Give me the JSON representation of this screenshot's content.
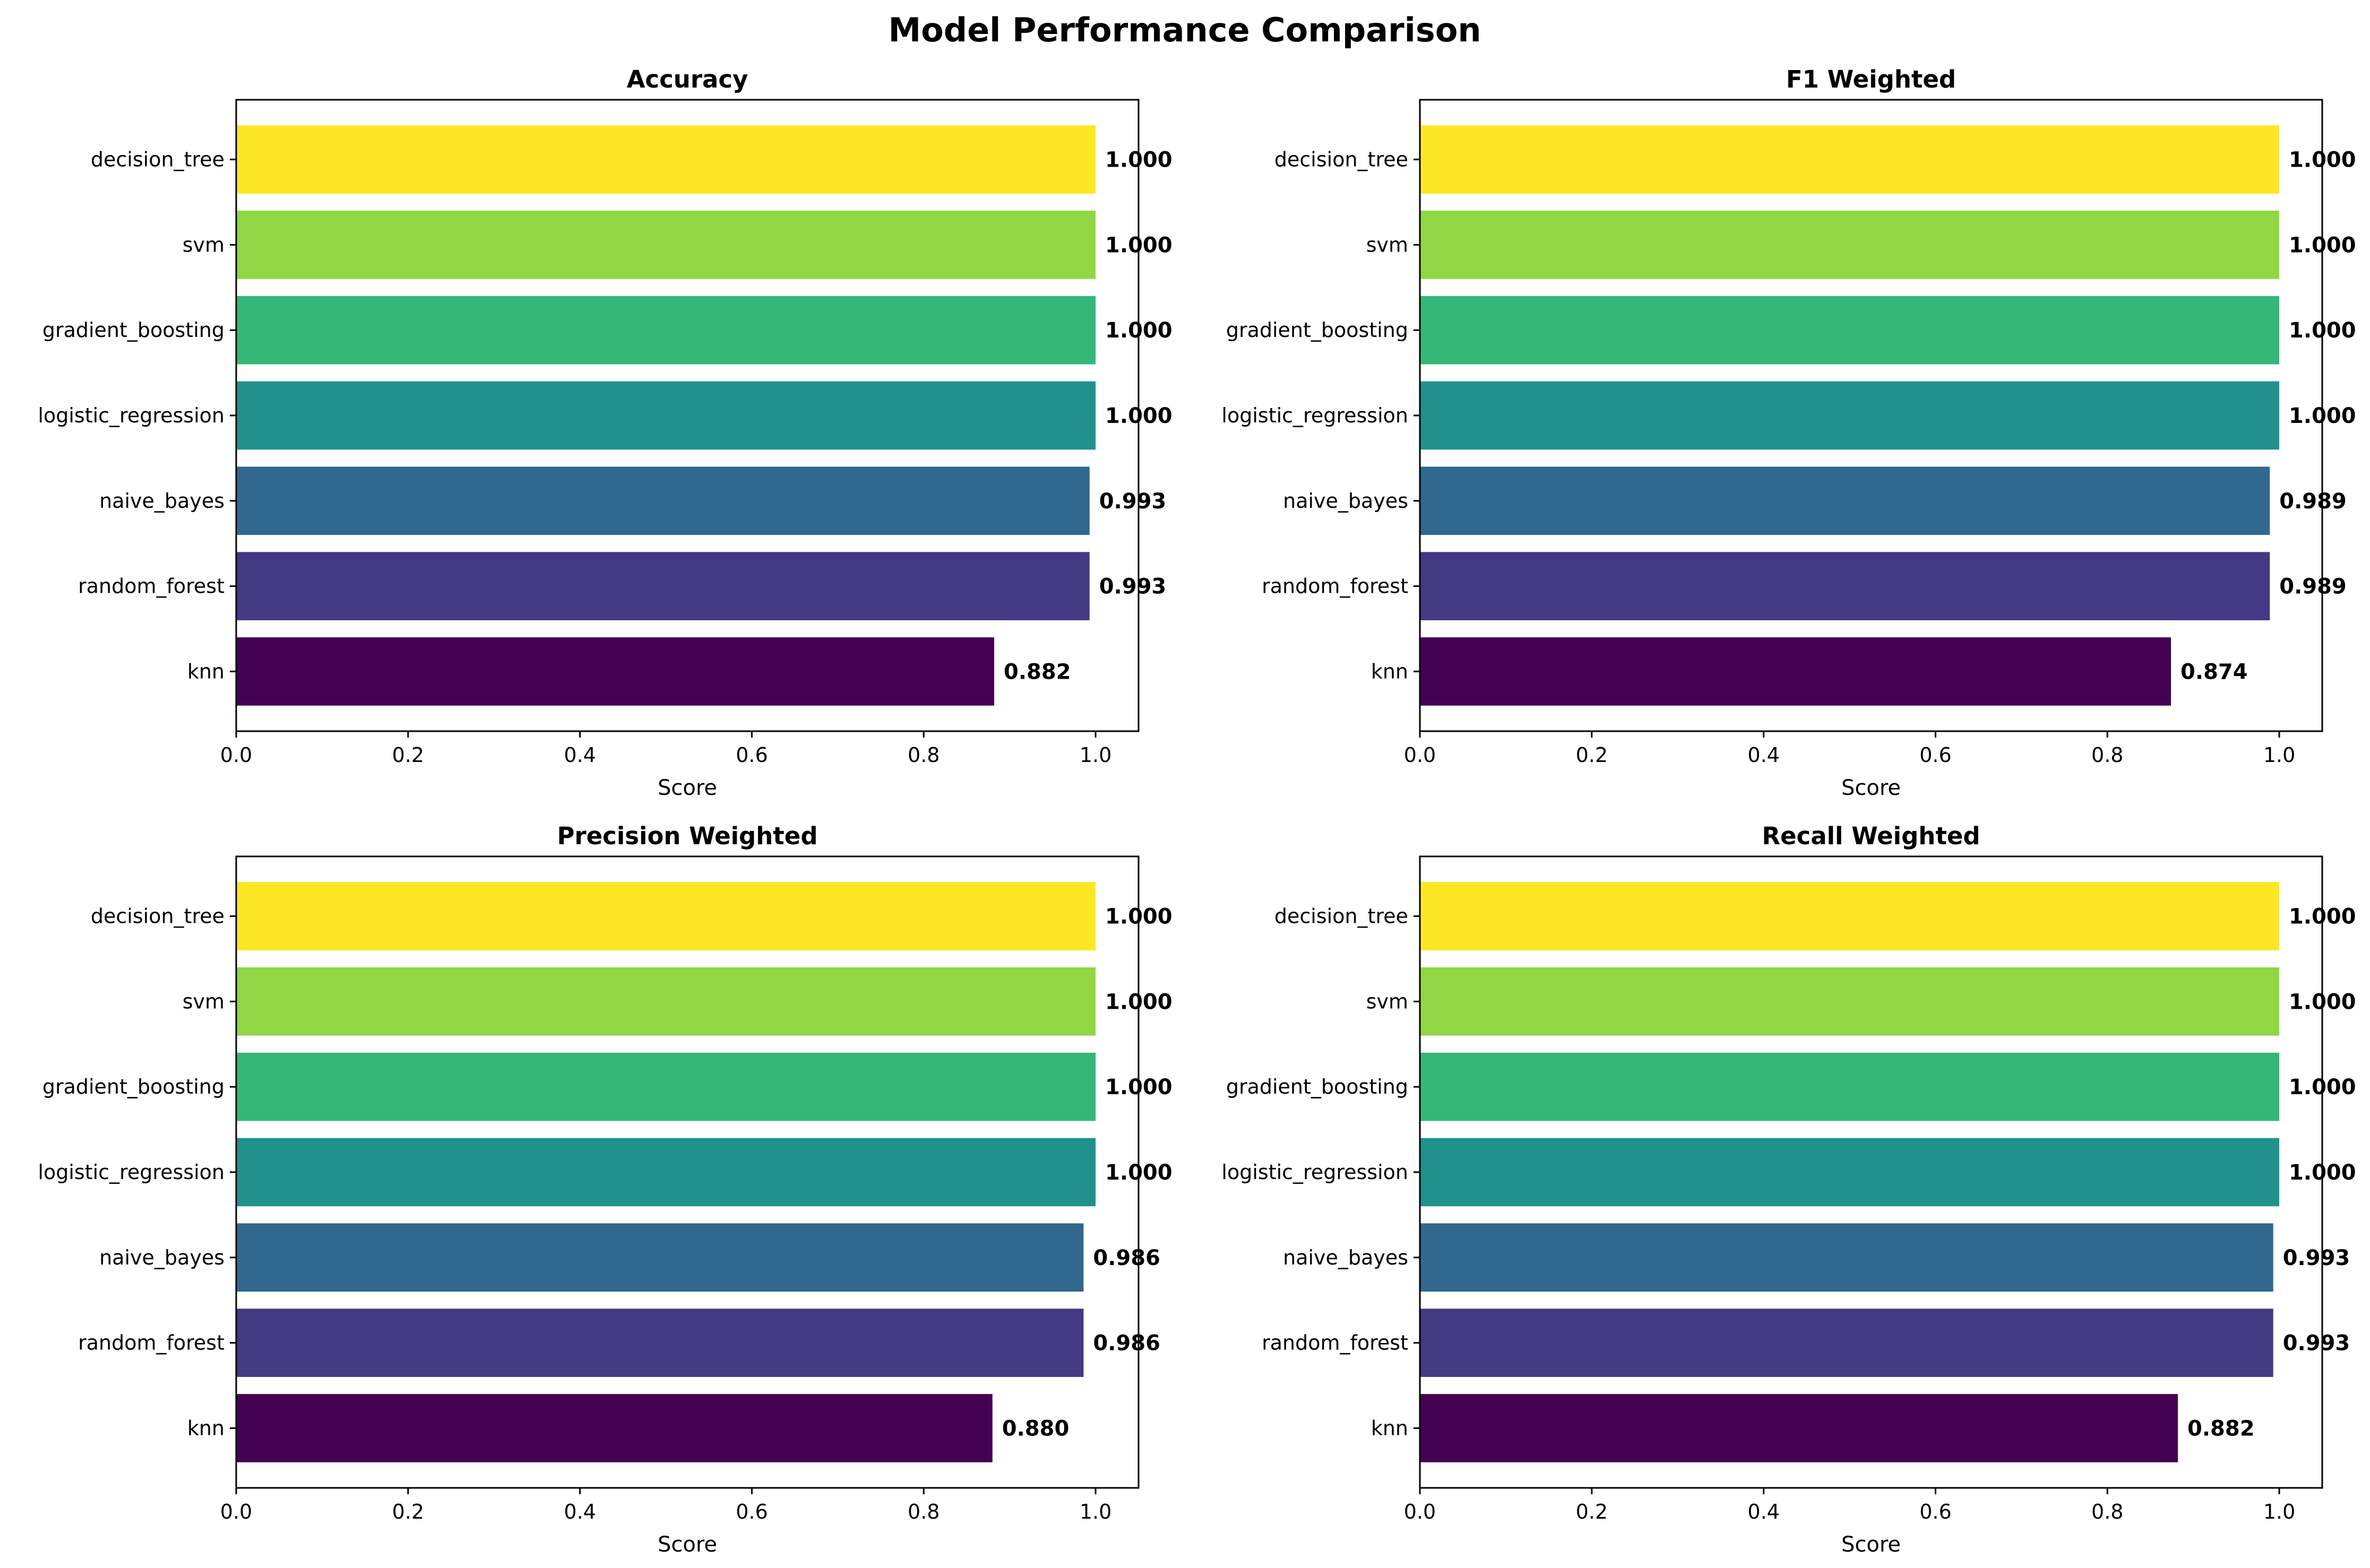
{
  "title": "Model Performance Comparison",
  "chart_data": [
    {
      "type": "bar",
      "orientation": "horizontal",
      "title": "Accuracy",
      "xlabel": "Score",
      "ylabel": "",
      "xlim": [
        0,
        1.05
      ],
      "xticks": [
        "0.0",
        "0.2",
        "0.4",
        "0.6",
        "0.8",
        "1.0"
      ],
      "categories": [
        "knn",
        "random_forest",
        "naive_bayes",
        "logistic_regression",
        "gradient_boosting",
        "svm",
        "decision_tree"
      ],
      "values": [
        0.882,
        0.993,
        0.993,
        1.0,
        1.0,
        1.0,
        1.0
      ],
      "value_labels": [
        "0.882",
        "0.993",
        "0.993",
        "1.000",
        "1.000",
        "1.000",
        "1.000"
      ],
      "colors": [
        "#440154",
        "#443983",
        "#31688e",
        "#21918c",
        "#35b779",
        "#90d743",
        "#fde725"
      ],
      "grid": false,
      "legend": "none"
    },
    {
      "type": "bar",
      "orientation": "horizontal",
      "title": "F1 Weighted",
      "xlabel": "Score",
      "ylabel": "",
      "xlim": [
        0,
        1.05
      ],
      "xticks": [
        "0.0",
        "0.2",
        "0.4",
        "0.6",
        "0.8",
        "1.0"
      ],
      "categories": [
        "knn",
        "random_forest",
        "naive_bayes",
        "logistic_regression",
        "gradient_boosting",
        "svm",
        "decision_tree"
      ],
      "values": [
        0.874,
        0.989,
        0.989,
        1.0,
        1.0,
        1.0,
        1.0
      ],
      "value_labels": [
        "0.874",
        "0.989",
        "0.989",
        "1.000",
        "1.000",
        "1.000",
        "1.000"
      ],
      "colors": [
        "#440154",
        "#443983",
        "#31688e",
        "#21918c",
        "#35b779",
        "#90d743",
        "#fde725"
      ],
      "grid": false,
      "legend": "none"
    },
    {
      "type": "bar",
      "orientation": "horizontal",
      "title": "Precision Weighted",
      "xlabel": "Score",
      "ylabel": "",
      "xlim": [
        0,
        1.05
      ],
      "xticks": [
        "0.0",
        "0.2",
        "0.4",
        "0.6",
        "0.8",
        "1.0"
      ],
      "categories": [
        "knn",
        "random_forest",
        "naive_bayes",
        "logistic_regression",
        "gradient_boosting",
        "svm",
        "decision_tree"
      ],
      "values": [
        0.88,
        0.986,
        0.986,
        1.0,
        1.0,
        1.0,
        1.0
      ],
      "value_labels": [
        "0.880",
        "0.986",
        "0.986",
        "1.000",
        "1.000",
        "1.000",
        "1.000"
      ],
      "colors": [
        "#440154",
        "#443983",
        "#31688e",
        "#21918c",
        "#35b779",
        "#90d743",
        "#fde725"
      ],
      "grid": false,
      "legend": "none"
    },
    {
      "type": "bar",
      "orientation": "horizontal",
      "title": "Recall Weighted",
      "xlabel": "Score",
      "ylabel": "",
      "xlim": [
        0,
        1.05
      ],
      "xticks": [
        "0.0",
        "0.2",
        "0.4",
        "0.6",
        "0.8",
        "1.0"
      ],
      "categories": [
        "knn",
        "random_forest",
        "naive_bayes",
        "logistic_regression",
        "gradient_boosting",
        "svm",
        "decision_tree"
      ],
      "values": [
        0.882,
        0.993,
        0.993,
        1.0,
        1.0,
        1.0,
        1.0
      ],
      "value_labels": [
        "0.882",
        "0.993",
        "0.993",
        "1.000",
        "1.000",
        "1.000",
        "1.000"
      ],
      "colors": [
        "#440154",
        "#443983",
        "#31688e",
        "#21918c",
        "#35b779",
        "#90d743",
        "#fde725"
      ],
      "grid": false,
      "legend": "none"
    }
  ]
}
